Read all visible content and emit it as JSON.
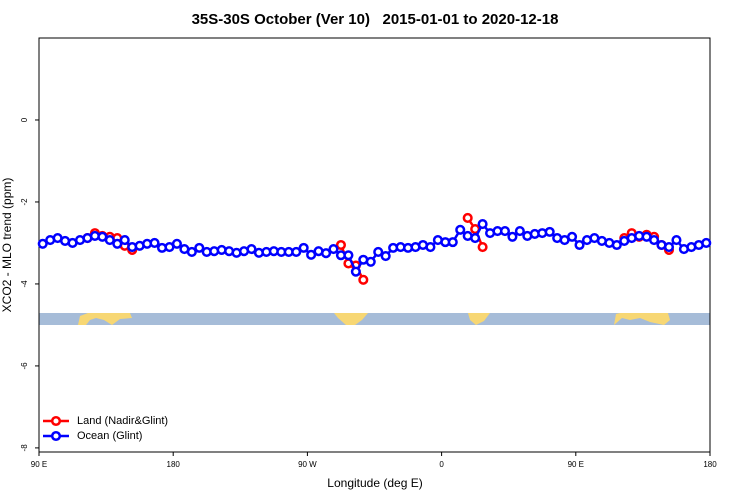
{
  "chart_data": {
    "type": "line",
    "title": "35S-30S October (Ver 10)   2015-01-01 to 2020-12-18",
    "x_label": "Longitude (deg E)",
    "y_label": "XCO2 - MLO trend (ppm)",
    "xlim": [
      90,
      540
    ],
    "ylim": [
      -8.1,
      2
    ],
    "xticks": [
      {
        "value": 90,
        "label": "90 E"
      },
      180,
      {
        "value": 270,
        "label": "90 W"
      },
      {
        "value": 360,
        "label": "0"
      },
      {
        "value": 450,
        "label": "90 E"
      },
      {
        "value": 540,
        "label": "180"
      }
    ],
    "yticks": [
      0,
      -2,
      -4,
      -6,
      -8
    ],
    "legend": "bottom-left",
    "x": [
      92.5,
      97.5,
      102.5,
      107.5,
      112.5,
      117.5,
      122.5,
      127.5,
      132.5,
      137.5,
      142.5,
      147.5,
      152.5,
      157.5,
      162.5,
      167.5,
      172.5,
      177.5,
      182.5,
      187.5,
      192.5,
      197.5,
      202.5,
      207.5,
      212.5,
      217.5,
      222.5,
      227.5,
      232.5,
      237.5,
      242.5,
      247.5,
      252.5,
      257.5,
      262.5,
      267.5,
      272.5,
      277.5,
      282.5,
      287.5,
      292.5,
      297.5,
      302.5,
      307.5,
      312.5,
      317.5,
      322.5,
      327.5,
      332.5,
      337.5,
      342.5,
      347.5,
      352.5,
      357.5,
      362.5,
      367.5,
      372.5,
      377.5,
      382.5,
      387.5,
      392.5,
      397.5,
      402.5,
      407.5,
      412.5,
      417.5,
      422.5,
      427.5,
      432.5,
      437.5,
      442.5,
      447.5,
      452.5,
      457.5,
      462.5,
      467.5,
      472.5,
      477.5,
      482.5,
      487.5,
      492.5,
      497.5,
      502.5,
      507.5,
      512.5,
      517.5,
      522.5,
      527.5,
      532.5,
      537.5
    ],
    "series": [
      {
        "name": "Land (Nadir&Glint)",
        "color": "#ff0000",
        "values": [
          null,
          null,
          null,
          null,
          null,
          null,
          -2.88,
          -2.76,
          -2.83,
          -2.85,
          -2.88,
          -3.07,
          -3.17,
          null,
          null,
          null,
          null,
          null,
          null,
          null,
          null,
          null,
          null,
          null,
          null,
          null,
          null,
          null,
          null,
          null,
          null,
          null,
          null,
          null,
          null,
          null,
          null,
          null,
          null,
          null,
          -3.05,
          -3.5,
          -3.55,
          -3.9,
          null,
          null,
          null,
          null,
          null,
          null,
          null,
          null,
          null,
          null,
          null,
          null,
          null,
          -2.39,
          -2.66,
          -3.1,
          null,
          null,
          null,
          null,
          null,
          null,
          null,
          null,
          null,
          null,
          null,
          null,
          null,
          null,
          null,
          null,
          null,
          null,
          -2.88,
          -2.76,
          -2.85,
          -2.8,
          -2.85,
          -3.05,
          -3.17,
          null,
          null,
          null,
          null,
          null
        ]
      },
      {
        "name": "Ocean (Glint)",
        "color": "#0000ff",
        "values": [
          -3.02,
          -2.93,
          -2.88,
          -2.95,
          -3.0,
          -2.93,
          -2.88,
          -2.83,
          -2.85,
          -2.93,
          -3.02,
          -2.93,
          -3.1,
          -3.07,
          -3.02,
          -3.0,
          -3.12,
          -3.1,
          -3.02,
          -3.15,
          -3.22,
          -3.12,
          -3.22,
          -3.2,
          -3.17,
          -3.2,
          -3.24,
          -3.2,
          -3.15,
          -3.24,
          -3.22,
          -3.2,
          -3.22,
          -3.22,
          -3.22,
          -3.12,
          -3.29,
          -3.2,
          -3.25,
          -3.15,
          -3.3,
          -3.3,
          -3.7,
          -3.41,
          -3.46,
          -3.22,
          -3.32,
          -3.12,
          -3.1,
          -3.12,
          -3.1,
          -3.05,
          -3.1,
          -2.93,
          -2.98,
          -2.98,
          -2.68,
          -2.83,
          -2.88,
          -2.54,
          -2.76,
          -2.71,
          -2.71,
          -2.85,
          -2.71,
          -2.83,
          -2.78,
          -2.76,
          -2.73,
          -2.88,
          -2.93,
          -2.85,
          -3.05,
          -2.93,
          -2.88,
          -2.95,
          -3.0,
          -3.05,
          -2.95,
          -2.88,
          -2.83,
          -2.85,
          -2.93,
          -3.05,
          -3.1,
          -2.93,
          -3.15,
          -3.1,
          -3.05,
          -3.0
        ]
      }
    ]
  }
}
